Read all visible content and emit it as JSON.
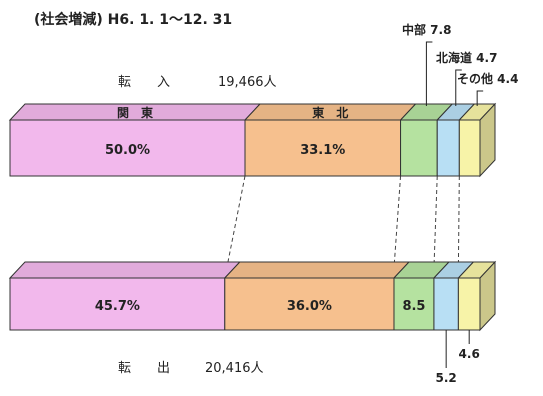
{
  "chart_data": {
    "type": "bar",
    "subtitle": "(社会増減)  H6. 1. 1〜12. 31",
    "colors": {
      "関東": "#f2b8ec",
      "東北": "#f6c08e",
      "中部": "#b5e2a0",
      "北海道": "#b8dff4",
      "その他": "#f7f3a8"
    },
    "categories": [
      "関東",
      "東北",
      "中部",
      "北海道",
      "その他"
    ],
    "series": [
      {
        "name": "転入",
        "label_text": "転　　入",
        "total_text": "19,466人",
        "values": [
          50.0,
          33.1,
          7.8,
          4.7,
          4.4
        ],
        "value_labels": [
          "50.0%",
          "33.1%",
          "中部 7.8",
          "北海道 4.7",
          "その他 4.4"
        ],
        "segment_names": [
          "関　東",
          "東　北",
          "",
          "",
          ""
        ]
      },
      {
        "name": "転出",
        "label_text": "転　　出",
        "total_text": "20,416人",
        "values": [
          45.7,
          36.0,
          8.5,
          5.2,
          4.6
        ],
        "value_labels": [
          "45.7%",
          "36.0%",
          "8.5",
          "5.2",
          "4.6"
        ]
      }
    ]
  }
}
